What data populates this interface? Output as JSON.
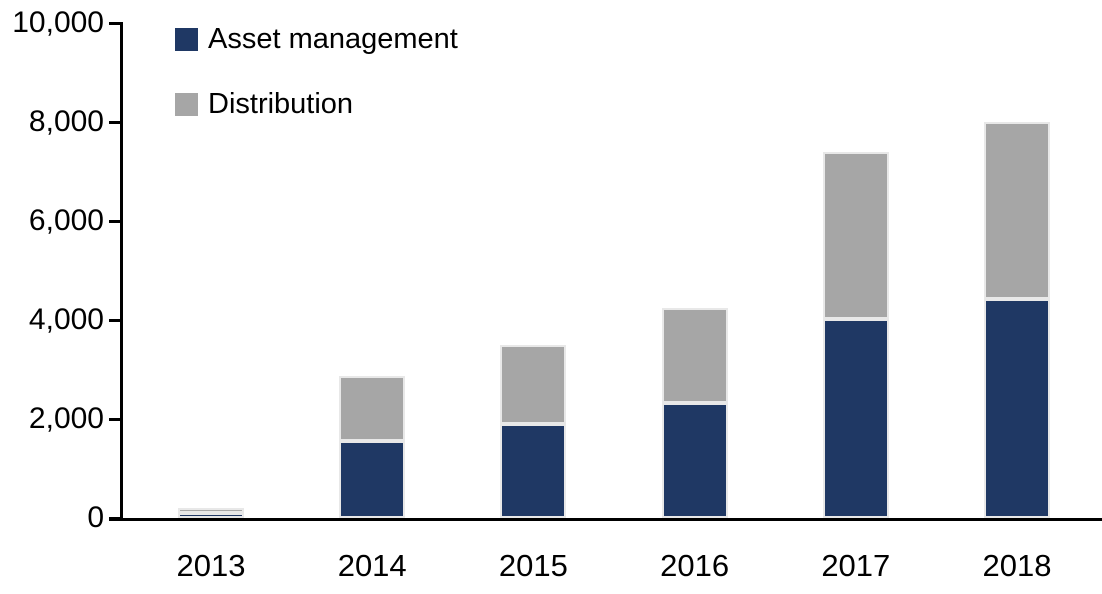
{
  "chart_data": {
    "type": "bar",
    "stacked": true,
    "title": "",
    "xlabel": "",
    "ylabel": "",
    "categories": [
      "2013",
      "2014",
      "2015",
      "2016",
      "2017",
      "2018"
    ],
    "series": [
      {
        "name": "Asset management",
        "color": "#1f3864",
        "values": [
          100,
          1550,
          1900,
          2320,
          4030,
          4430
        ]
      },
      {
        "name": "Distribution",
        "color": "#a6a6a6",
        "values": [
          100,
          1320,
          1600,
          1930,
          3370,
          3570
        ]
      }
    ],
    "stack_totals": [
      200,
      2870,
      3500,
      4250,
      7400,
      8000
    ],
    "ylim": [
      0,
      10000
    ],
    "ytick_values": [
      0,
      2000,
      4000,
      6000,
      8000,
      10000
    ],
    "ytick_labels": [
      "0",
      "2,000",
      "4,000",
      "6,000",
      "8,000",
      "10,000"
    ],
    "grid": false,
    "legend_position": "top-left-inside"
  },
  "colors": {
    "axis": "#000000",
    "text": "#000000",
    "background": "#ffffff",
    "segment_border": "#e8e8e8",
    "asset_management": "#1f3864",
    "distribution": "#a6a6a6"
  }
}
